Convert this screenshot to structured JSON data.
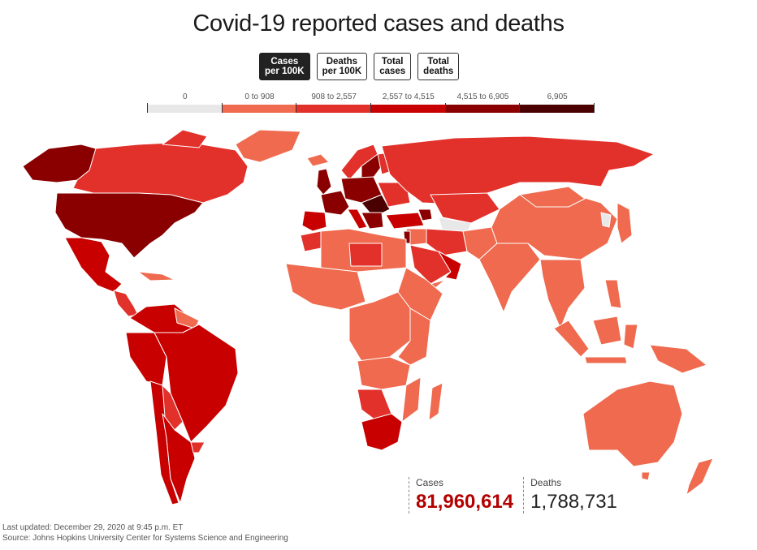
{
  "title": "Covid-19 reported cases and deaths",
  "toggles": [
    {
      "line1": "Cases",
      "line2": "per 100K",
      "active": true
    },
    {
      "line1": "Deaths",
      "line2": "per 100K",
      "active": false
    },
    {
      "line1": "Total",
      "line2": "cases",
      "active": false
    },
    {
      "line1": "Total",
      "line2": "deaths",
      "active": false
    }
  ],
  "legend": [
    {
      "label": "0",
      "color": "#e8e8e8"
    },
    {
      "label": "0 to 908",
      "color": "#ef6a4e"
    },
    {
      "label": "908 to 2,557",
      "color": "#e2302a"
    },
    {
      "label": "2,557 to 4,515",
      "color": "#c80000"
    },
    {
      "label": "4,515 to 6,905",
      "color": "#8a0000"
    },
    {
      "label": "6,905",
      "color": "#4a0000"
    }
  ],
  "totals": {
    "cases_label": "Cases",
    "cases_value": "81,960,614",
    "deaths_label": "Deaths",
    "deaths_value": "1,788,731"
  },
  "footer": {
    "updated": "Last updated: December 29, 2020 at 9:45 p.m. ET",
    "source": "Source: Johns Hopkins University Center for Systems Science and Engineering"
  }
}
